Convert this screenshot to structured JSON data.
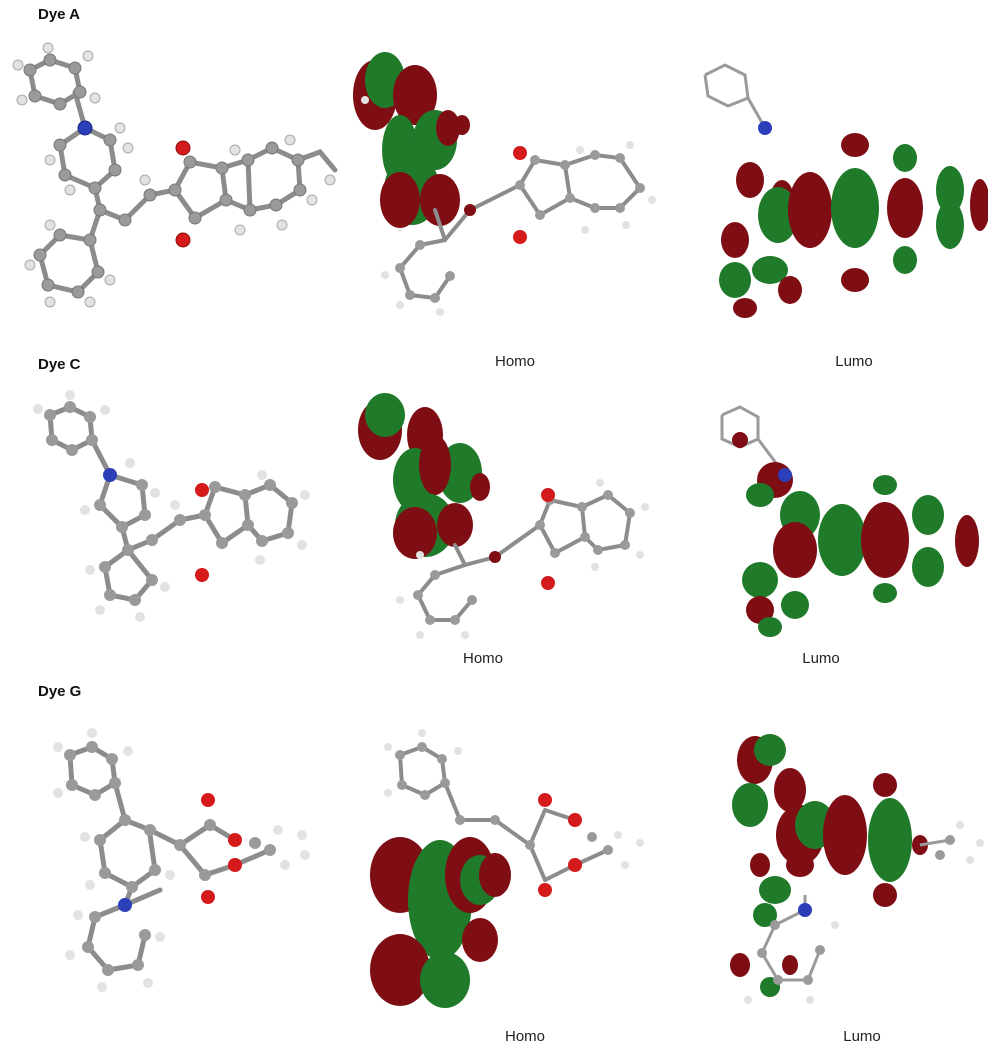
{
  "rows": [
    {
      "label": "Dye A",
      "homo_label": "Homo",
      "lumo_label": "Lumo"
    },
    {
      "label": "Dye C",
      "homo_label": "Homo",
      "lumo_label": "Lumo"
    },
    {
      "label": "Dye G",
      "homo_label": "Homo",
      "lumo_label": "Lumo"
    }
  ],
  "colors": {
    "carbon": "#9a9a9a",
    "hydrogen": "#e6e6e6",
    "oxygen": "#d41a1a",
    "nitrogen": "#2b3fb8",
    "lobe_positive": "#7f0d14",
    "lobe_negative": "#1f7a2a"
  },
  "panel_types": [
    "structure",
    "homo-orbital",
    "lumo-orbital"
  ]
}
